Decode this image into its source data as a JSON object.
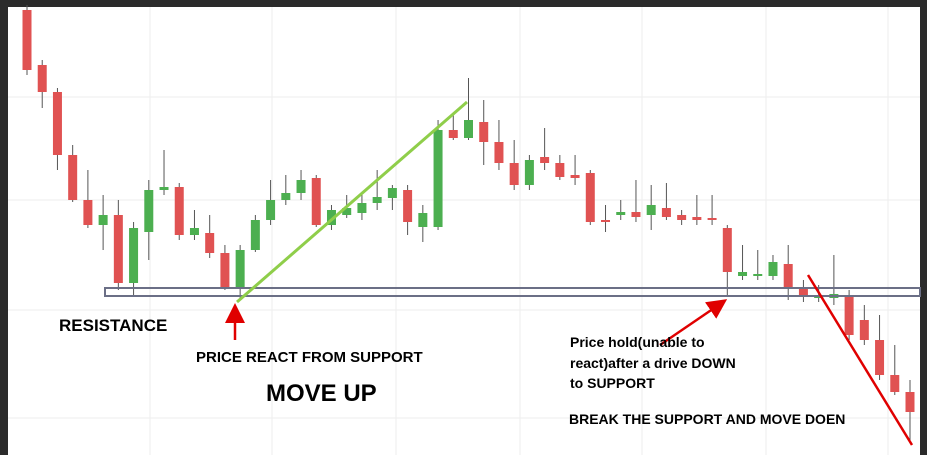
{
  "chart_data": {
    "type": "candlestick",
    "up_color": "#4caf50",
    "down_color": "#e05252",
    "open": [
      445,
      390,
      363,
      300,
      255,
      230,
      240,
      172,
      223,
      265,
      268,
      220,
      222,
      202,
      168,
      205,
      235,
      255,
      262,
      277,
      230,
      240,
      242,
      252,
      257,
      265,
      228,
      228,
      325,
      317,
      333,
      313,
      292,
      270,
      298,
      292,
      280,
      282,
      235,
      240,
      243,
      240,
      247,
      240,
      238,
      237,
      227,
      179,
      179,
      179,
      191,
      167,
      157,
      157,
      160,
      135,
      115,
      80,
      63
    ],
    "high": [
      450,
      395,
      367,
      310,
      285,
      260,
      255,
      233,
      275,
      305,
      272,
      245,
      240,
      210,
      210,
      240,
      275,
      280,
      285,
      280,
      250,
      260,
      260,
      285,
      270,
      270,
      250,
      335,
      340,
      377,
      355,
      335,
      315,
      300,
      327,
      300,
      300,
      285,
      250,
      255,
      275,
      270,
      272,
      245,
      260,
      260,
      230,
      210,
      205,
      200,
      210,
      175,
      170,
      200,
      165,
      150,
      140,
      110,
      75
    ],
    "low": [
      380,
      347,
      285,
      253,
      227,
      205,
      165,
      158,
      195,
      260,
      215,
      215,
      197,
      165,
      155,
      203,
      230,
      250,
      255,
      228,
      225,
      237,
      235,
      245,
      245,
      220,
      213,
      225,
      315,
      315,
      290,
      285,
      265,
      265,
      285,
      275,
      270,
      230,
      223,
      235,
      233,
      225,
      235,
      230,
      230,
      230,
      159,
      175,
      175,
      175,
      155,
      153,
      153,
      150,
      115,
      110,
      75,
      60,
      15
    ],
    "close": [
      385,
      363,
      300,
      255,
      230,
      240,
      172,
      227,
      265,
      268,
      220,
      227,
      202,
      168,
      205,
      235,
      255,
      262,
      275,
      230,
      245,
      247,
      252,
      258,
      267,
      233,
      242,
      325,
      317,
      335,
      313,
      292,
      270,
      295,
      292,
      278,
      277,
      233,
      233,
      243,
      238,
      250,
      238,
      235,
      235,
      235,
      183,
      183,
      181,
      193,
      168,
      158,
      160,
      161,
      120,
      115,
      80,
      63,
      43
    ],
    "ylim": [
      0,
      448
    ],
    "annotations": {
      "resistance": "RESISTANCE",
      "support_reaction": "PRICE REACT FROM SUPPORT",
      "move_up": "MOVE UP",
      "price_hold": [
        "Price hold(unable  to",
        "react)after a drive DOWN",
        "to SUPPORT"
      ],
      "break": "BREAK THE SUPPORT AND MOVE DOEN"
    }
  }
}
